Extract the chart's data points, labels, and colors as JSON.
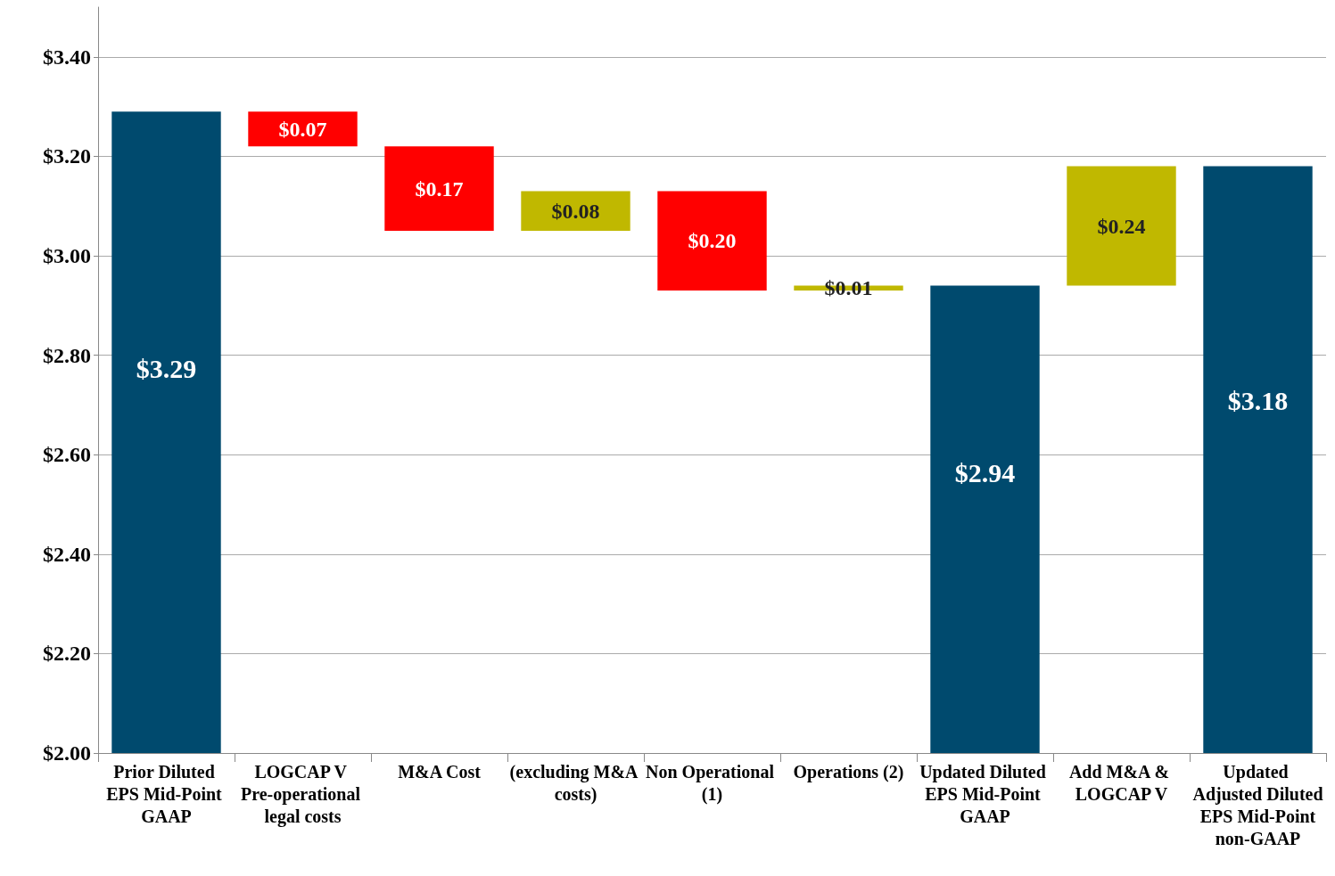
{
  "chart_data": {
    "type": "bar",
    "categories": [
      "Prior Diluted EPS Mid-Point GAAP",
      "LOGCAP V Pre-operational legal costs",
      "M&A Cost",
      "(excluding M&A costs)",
      "Non Operational (1)",
      "Operations (2)",
      "Updated Diluted EPS Mid-Point GAAP",
      "Add M&A & LOGCAP V",
      "Updated Adjusted Diluted EPS Mid-Point non-GAAP"
    ],
    "values": [
      3.29,
      0.07,
      0.17,
      0.08,
      0.2,
      0.01,
      2.94,
      0.24,
      3.18
    ],
    "base": [
      null,
      3.22,
      3.05,
      3.05,
      2.93,
      2.93,
      null,
      2.94,
      null
    ],
    "colors": [
      "#004a6e",
      "#ff0000",
      "#ff0000",
      "#c0b800",
      "#ff0000",
      "#c0b800",
      "#004a6e",
      "#c0b800",
      "#004a6e"
    ],
    "value_labels": [
      "$3.29",
      "$0.07",
      "$0.17",
      "$0.08",
      "$0.20",
      "$0.01",
      "$2.94",
      "$0.24",
      "$3.18"
    ],
    "ylim": [
      2.0,
      3.5
    ],
    "yticks": [
      {
        "value": 2.0,
        "label": "$2.00"
      },
      {
        "value": 2.2,
        "label": "$2.20"
      },
      {
        "value": 2.4,
        "label": "$2.40"
      },
      {
        "value": 2.6,
        "label": "$2.60"
      },
      {
        "value": 2.8,
        "label": "$2.80"
      },
      {
        "value": 3.0,
        "label": "$3.00"
      },
      {
        "value": 3.2,
        "label": "$3.20"
      },
      {
        "value": 3.4,
        "label": "$3.40"
      }
    ],
    "grid": "y"
  }
}
